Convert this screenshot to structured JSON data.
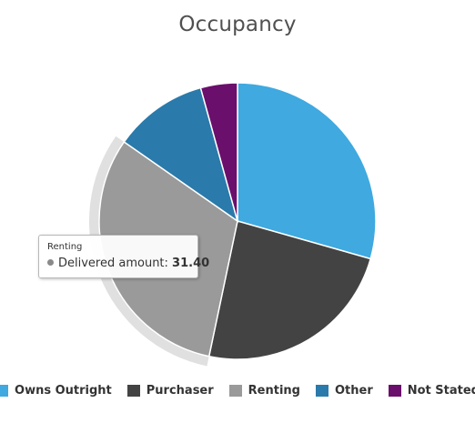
{
  "chart_data": {
    "type": "pie",
    "title": "Occupancy",
    "categories": [
      "Owns Outright",
      "Purchaser",
      "Renting",
      "Other",
      "Not Stated"
    ],
    "values": [
      29.4,
      23.9,
      31.4,
      11.0,
      4.3
    ],
    "colors": [
      "#3fa9e0",
      "#434343",
      "#9a9a9a",
      "#2a7aab",
      "#6a0f6b"
    ],
    "highlighted": "Renting",
    "legend_position": "bottom"
  },
  "tooltip": {
    "header": "Renting",
    "label": "Delivered amount:",
    "value": "31.40"
  }
}
